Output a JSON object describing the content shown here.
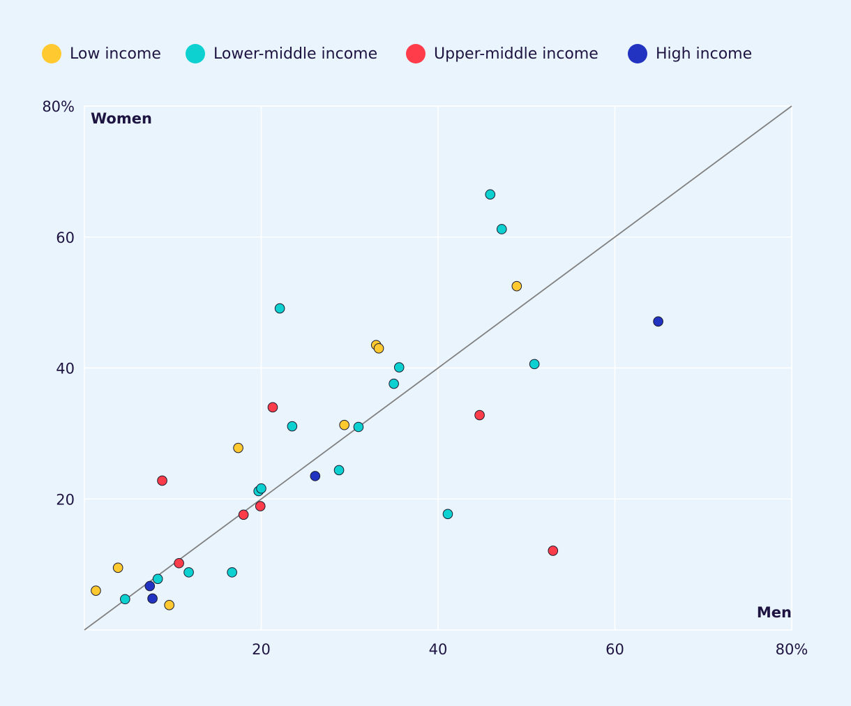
{
  "colors": {
    "background": "#eaf4fc",
    "text": "#1e1442",
    "grid": "#ffffff",
    "diagonal": "#808080"
  },
  "chart_data": {
    "type": "scatter",
    "x_axis_label": "Men",
    "y_axis_label": "Women",
    "xlim": [
      0,
      80
    ],
    "ylim": [
      0,
      80
    ],
    "x_ticks": [
      {
        "value": 20,
        "label": "20"
      },
      {
        "value": 40,
        "label": "40"
      },
      {
        "value": 60,
        "label": "60"
      },
      {
        "value": 80,
        "label": "80%"
      }
    ],
    "y_ticks": [
      {
        "value": 20,
        "label": "20"
      },
      {
        "value": 40,
        "label": "40"
      },
      {
        "value": 60,
        "label": "60"
      },
      {
        "value": 80,
        "label": "80%"
      }
    ],
    "grid": true,
    "reference_line": "y = x",
    "legend_position": "top",
    "series": [
      {
        "name": "Low income",
        "color": "#ffc92f",
        "points": [
          [
            1.3,
            6.0
          ],
          [
            3.8,
            9.5
          ],
          [
            9.6,
            3.8
          ],
          [
            17.4,
            27.8
          ],
          [
            29.4,
            31.3
          ],
          [
            33.0,
            43.5
          ],
          [
            33.3,
            43.0
          ],
          [
            48.9,
            52.5
          ]
        ]
      },
      {
        "name": "Lower-middle income",
        "color": "#0dd1d1",
        "points": [
          [
            4.6,
            4.7
          ],
          [
            8.3,
            7.8
          ],
          [
            11.8,
            8.8
          ],
          [
            16.7,
            8.8
          ],
          [
            19.7,
            21.2
          ],
          [
            20.0,
            21.6
          ],
          [
            22.1,
            49.1
          ],
          [
            23.5,
            31.1
          ],
          [
            28.8,
            24.4
          ],
          [
            31.0,
            31.0
          ],
          [
            35.0,
            37.6
          ],
          [
            35.6,
            40.1
          ],
          [
            41.1,
            17.7
          ],
          [
            45.9,
            66.5
          ],
          [
            47.2,
            61.2
          ],
          [
            50.9,
            40.6
          ]
        ]
      },
      {
        "name": "Upper-middle income",
        "color": "#ff3d4a",
        "points": [
          [
            8.8,
            22.8
          ],
          [
            10.7,
            10.2
          ],
          [
            18.0,
            17.6
          ],
          [
            19.9,
            18.9
          ],
          [
            21.3,
            34.0
          ],
          [
            44.7,
            32.8
          ],
          [
            53.0,
            12.1
          ]
        ]
      },
      {
        "name": "High income",
        "color": "#2233c2",
        "points": [
          [
            7.4,
            6.7
          ],
          [
            7.7,
            4.8
          ],
          [
            26.1,
            23.5
          ],
          [
            64.9,
            47.1
          ]
        ]
      }
    ]
  }
}
